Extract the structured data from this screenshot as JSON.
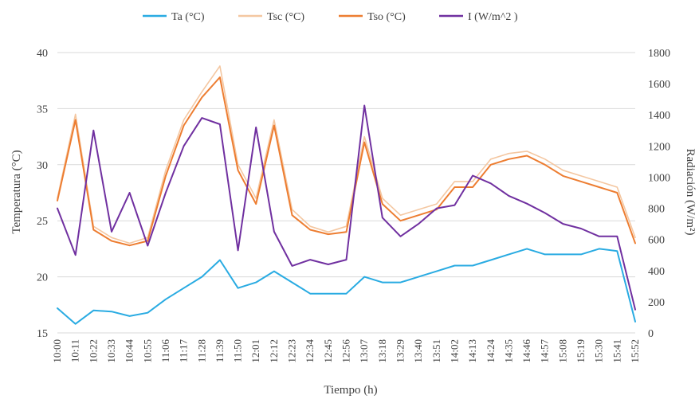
{
  "chart_data": {
    "type": "line",
    "xlabel": "Tiempo (h)",
    "ylabel": "Temperatura (°C)",
    "y2label": "Radiación (W/m²)",
    "ylim": [
      15,
      40
    ],
    "y2lim": [
      0,
      1800
    ],
    "yticks": [
      "15",
      "20",
      "25",
      "30",
      "35",
      "40"
    ],
    "y2ticks": [
      "0",
      "200",
      "400",
      "600",
      "800",
      "1000",
      "1200",
      "1400",
      "1600",
      "1800"
    ],
    "grid": "horizontal",
    "legend": "top",
    "categories": [
      "10:00",
      "10:11",
      "10:22",
      "10:33",
      "10:44",
      "10:55",
      "11:06",
      "11:17",
      "11:28",
      "11:39",
      "11:50",
      "12:01",
      "12:12",
      "12:23",
      "12:34",
      "12:45",
      "12:56",
      "13:07",
      "13:18",
      "13:29",
      "13:40",
      "13:51",
      "14:02",
      "14:13",
      "14:24",
      "14:35",
      "14:46",
      "14:57",
      "15:08",
      "15:19",
      "15:30",
      "15:41",
      "15:52"
    ],
    "series": [
      {
        "name": "Ta (°C)",
        "axis": "left",
        "color": "#29abe2",
        "width": 2,
        "values": [
          17.2,
          15.8,
          17.0,
          16.9,
          16.5,
          16.8,
          18.0,
          19.0,
          20.0,
          21.5,
          19.0,
          19.5,
          20.5,
          19.5,
          18.5,
          18.5,
          18.5,
          20.0,
          19.5,
          19.5,
          20.0,
          20.5,
          21.0,
          21.0,
          21.5,
          22.0,
          22.5,
          22.0,
          22.0,
          22.0,
          22.5,
          22.3,
          16.0
        ]
      },
      {
        "name": "Tsc (°C)",
        "axis": "left",
        "color": "#f4c7a1",
        "width": 1.6,
        "values": [
          27.0,
          34.5,
          24.5,
          23.5,
          23.0,
          23.5,
          29.5,
          34.0,
          36.5,
          38.8,
          30.0,
          27.0,
          34.0,
          26.0,
          24.5,
          24.0,
          24.5,
          32.5,
          27.0,
          25.5,
          26.0,
          26.5,
          28.5,
          28.5,
          30.5,
          31.0,
          31.2,
          30.5,
          29.5,
          29.0,
          28.5,
          28.0,
          23.5
        ]
      },
      {
        "name": "Tso (°C)",
        "axis": "left",
        "color": "#ed7d31",
        "width": 2,
        "values": [
          26.8,
          34.0,
          24.2,
          23.2,
          22.8,
          23.2,
          29.0,
          33.5,
          36.0,
          37.8,
          29.5,
          26.5,
          33.5,
          25.5,
          24.2,
          23.8,
          24.0,
          32.0,
          26.5,
          25.0,
          25.5,
          26.0,
          28.0,
          28.0,
          30.0,
          30.5,
          30.8,
          30.0,
          29.0,
          28.5,
          28.0,
          27.5,
          23.0
        ]
      },
      {
        "name": "I (W/m^2 )",
        "axis": "right",
        "color": "#7030a0",
        "width": 2,
        "values": [
          800,
          500,
          1300,
          650,
          900,
          560,
          900,
          1200,
          1380,
          1340,
          530,
          1320,
          650,
          430,
          470,
          440,
          470,
          1460,
          740,
          620,
          700,
          800,
          820,
          1010,
          960,
          880,
          830,
          770,
          700,
          670,
          620,
          620,
          150
        ]
      }
    ]
  }
}
